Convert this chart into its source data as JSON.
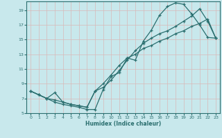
{
  "xlabel": "Humidex (Indice chaleur)",
  "bg_color": "#c8e8ec",
  "line_color": "#2a6e6e",
  "grid_color": "#e0f0f0",
  "xlim": [
    -0.5,
    23.5
  ],
  "ylim": [
    5,
    20.2
  ],
  "yticks": [
    5,
    7,
    9,
    11,
    13,
    15,
    17,
    19
  ],
  "xticks": [
    0,
    1,
    2,
    3,
    4,
    5,
    6,
    7,
    8,
    9,
    10,
    11,
    12,
    13,
    14,
    15,
    16,
    17,
    18,
    19,
    20,
    21,
    22,
    23
  ],
  "line1_y": [
    8.0,
    7.5,
    7.0,
    6.5,
    6.2,
    6.0,
    5.8,
    5.5,
    5.5,
    8.2,
    10.0,
    10.5,
    12.5,
    12.2,
    14.8,
    16.3,
    18.3,
    19.5,
    20.0,
    19.8,
    18.5,
    17.0,
    15.3,
    15.2
  ],
  "line2_y": [
    8.0,
    7.5,
    7.0,
    6.8,
    6.5,
    6.2,
    6.0,
    5.8,
    8.0,
    8.5,
    9.5,
    10.8,
    12.2,
    13.5,
    14.5,
    15.2,
    15.8,
    16.2,
    16.8,
    17.5,
    18.2,
    19.2,
    17.5,
    15.2
  ],
  "line3_y": [
    8.0,
    7.5,
    7.0,
    7.8,
    6.5,
    6.2,
    6.0,
    5.8,
    8.0,
    9.0,
    10.2,
    11.5,
    12.5,
    13.0,
    13.8,
    14.2,
    14.8,
    15.2,
    15.8,
    16.2,
    16.8,
    17.2,
    17.8,
    15.2
  ],
  "marker_size": 3.5,
  "linewidth": 0.9
}
